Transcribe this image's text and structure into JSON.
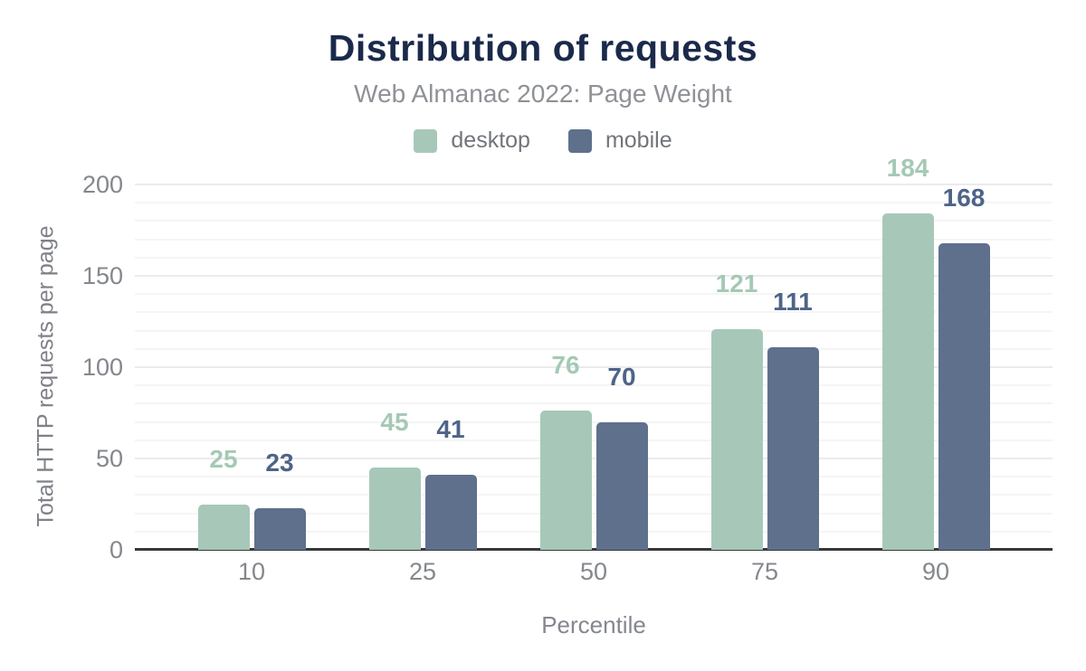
{
  "chart": {
    "title": "Distribution of requests",
    "subtitle": "Web Almanac 2022: Page Weight",
    "xlabel": "Percentile",
    "ylabel": "Total HTTP requests per page"
  },
  "chart_data": {
    "type": "bar",
    "title": "Distribution of requests",
    "subtitle": "Web Almanac 2022: Page Weight",
    "categories": [
      "10",
      "25",
      "50",
      "75",
      "90"
    ],
    "series": [
      {
        "name": "desktop",
        "values": [
          25,
          45,
          76,
          121,
          184
        ],
        "color": "#a7c8b8",
        "label_color": "#a4c9b4"
      },
      {
        "name": "mobile",
        "values": [
          23,
          41,
          70,
          111,
          168
        ],
        "color": "#5f708c",
        "label_color": "#4d6488"
      }
    ],
    "xlabel": "Percentile",
    "ylabel": "Total HTTP requests per page",
    "ylim": [
      0,
      200
    ],
    "yticks": [
      0,
      50,
      100,
      150,
      200
    ],
    "minor_grid_step": 10,
    "grid": true,
    "legend_position": "top",
    "value_labels": true,
    "title_color": "#1b2a4a",
    "axis_line_color": "#36383a"
  }
}
